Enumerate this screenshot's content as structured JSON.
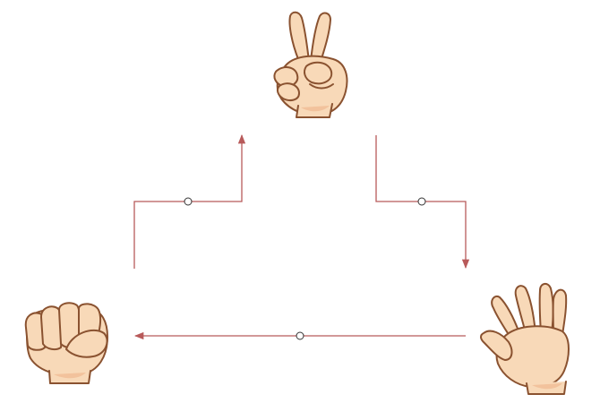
{
  "diagram": {
    "type": "cycle",
    "nodes": [
      {
        "id": "scissors",
        "icon": "scissors-hand-icon"
      },
      {
        "id": "paper",
        "icon": "paper-hand-icon"
      },
      {
        "id": "rock",
        "icon": "rock-fist-icon"
      }
    ],
    "edges": [
      {
        "from": "scissors",
        "to": "paper"
      },
      {
        "from": "paper",
        "to": "rock"
      },
      {
        "from": "rock",
        "to": "scissors"
      }
    ],
    "colors": {
      "connector": "#b85a5a",
      "skin": "#f8d9b8",
      "skin_shadow": "#f2c29c",
      "outline": "#8a5230",
      "midpoint_fill": "#ffffff"
    }
  }
}
